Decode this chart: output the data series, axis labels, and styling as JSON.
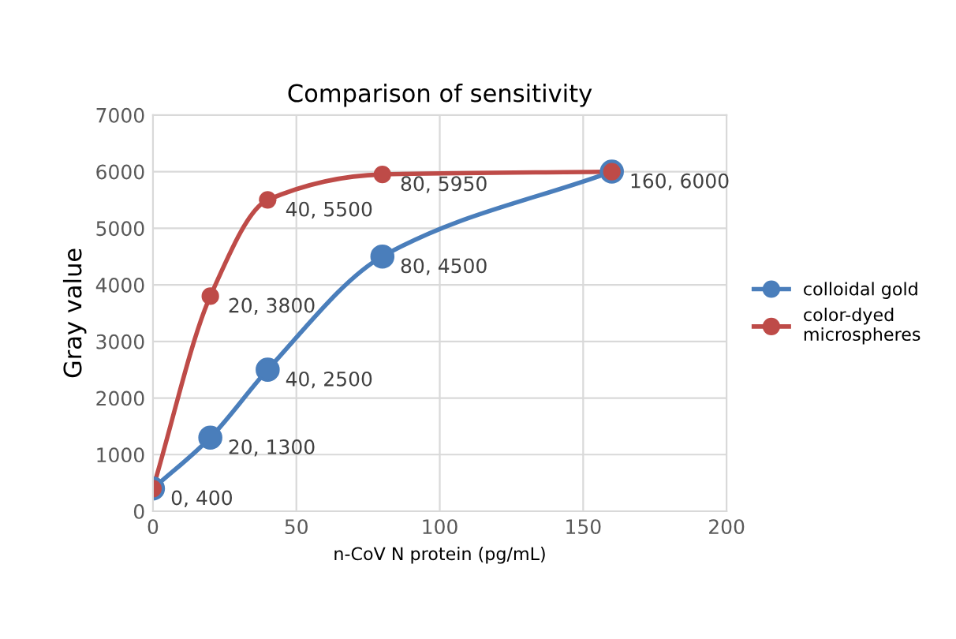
{
  "chart_data": {
    "type": "line",
    "title": "Comparison of sensitivity",
    "xlabel": "n-CoV N protein (pg/mL)",
    "ylabel": "Gray value",
    "x": [
      0,
      20,
      40,
      80,
      160
    ],
    "series": [
      {
        "name": "colloidal gold",
        "color": "#4a7ebb",
        "values": [
          400,
          1300,
          2500,
          4500,
          6000
        ],
        "value_labels": [
          null,
          "20, 1300",
          "40, 2500",
          "80, 4500",
          null
        ]
      },
      {
        "name": "color-dyed\nmicrospheres",
        "color": "#be4b48",
        "values": [
          400,
          3800,
          5500,
          5950,
          6000
        ],
        "value_labels": [
          "0, 400",
          "20, 3800",
          "40, 5500",
          "80, 5950",
          "160, 6000"
        ]
      }
    ],
    "xlim": [
      0,
      200
    ],
    "xticks": [
      0,
      50,
      100,
      150,
      200
    ],
    "ylim": [
      0,
      7000
    ],
    "yticks": [
      0,
      1000,
      2000,
      3000,
      4000,
      5000,
      6000,
      7000
    ],
    "grid": true,
    "legend": "right",
    "marker": "circle",
    "line_style": "solid"
  }
}
